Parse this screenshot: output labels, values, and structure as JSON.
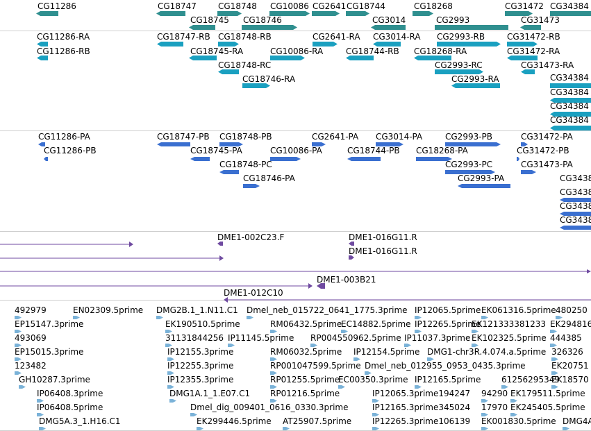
{
  "colors": {
    "gene": "#2f8f8f",
    "transcript": "#1aa0c0",
    "protein": "#3a6fd0",
    "clone": "#6f4aa0",
    "est": "#7ab2d8",
    "separator": "#cfcfcf"
  },
  "icons": {
    "left_arrow": "left-arrow-glyph-icon",
    "right_arrow": "right-arrow-glyph-icon"
  },
  "genes": [
    "CG11286",
    "CG18747",
    "CG18748",
    "CG10086",
    "CG2641",
    "CG18744",
    "CG18268",
    "CG31472",
    "CG34384",
    "CG18745",
    "CG18746",
    "CG3014",
    "CG2993",
    "CG31473"
  ],
  "transcripts": [
    "CG11286-RA",
    "CG18747-RB",
    "CG18748-RB",
    "CG2641-RA",
    "CG3014-RA",
    "CG2993-RB",
    "CG31472-RB",
    "CG11286-RB",
    "CG18745-RA",
    "CG10086-RA",
    "CG18744-RB",
    "CG18268-RA",
    "CG31472-RA",
    "CG18748-RC",
    "CG2993-RC",
    "CG31473-RA",
    "CG18746-RA",
    "CG2993-RA"
  ],
  "proteins": [
    "CG11286-PA",
    "CG18747-PB",
    "CG18748-PB",
    "CG2641-PA",
    "CG3014-PA",
    "CG2993-PB",
    "CG31472-PA",
    "CG11286-PB",
    "CG18745-PA",
    "CG10086-PA",
    "CG18744-PB",
    "CG18268-PA",
    "CG31472-PB",
    "CG18748-PC",
    "CG2993-PC",
    "CG31473-PA",
    "CG18746-PA",
    "CG2993-PA",
    "CG3438"
  ],
  "clones": [
    "DME1-002C23.F",
    "DME1-016G11.R",
    "DME1-016G11.R",
    "DME1-003B21",
    "DME1-012C10"
  ],
  "ests": [
    "492979",
    "EN02309.5prime",
    "DMG2B.1_1.N11.C1",
    "Dmel_neb_015722_0641_1775.3prime",
    "IP12065.5prime",
    "EK061316.5prime",
    "480250",
    "EP15147.3prime",
    "EK190510.5prime",
    "RM06432.5prime",
    "EC14882.5prime",
    "IP12265.5prime",
    "EK121333381233",
    "EK294816",
    "493069",
    "31131844256",
    "IP11145.5prime",
    "RP004550962.5prime",
    "IP11037.3prime",
    "EK102325.5prime",
    "444385",
    "EP15015.3prime",
    "IP12155.3prime",
    "RM06032.5prime",
    "IP12154.5prime",
    "DMG1-chr3R.4.074.a.5prime",
    "326326",
    "123482",
    "IP12255.3prime",
    "RP001047599.5prime",
    "Dmel_neb_012955_0953_0435.3prime",
    "EK20751",
    "GH10287.3prime",
    "IP12355.3prime",
    "RP01255.5prime",
    "EC00350.3prime",
    "IP12165.5prime",
    "61256295349",
    "EK18570",
    "IP06408.3prime",
    "DMG1A.1_1.E07.C1",
    "RP01216.5prime",
    "IP12065.3prime194247",
    "94290",
    "EK179511.5prime",
    "IP06408.5prime",
    "Dmel_dig_009401_0616_0330.3prime",
    "IP12165.3prime345024",
    "17970",
    "EK245405.5prime",
    "DMG5A.3_1.H16.C1",
    "EK299446.5prime",
    "AT25907.5prime",
    "IP12265.3prime106139",
    "EK001830.5prime",
    "DMG4A"
  ]
}
